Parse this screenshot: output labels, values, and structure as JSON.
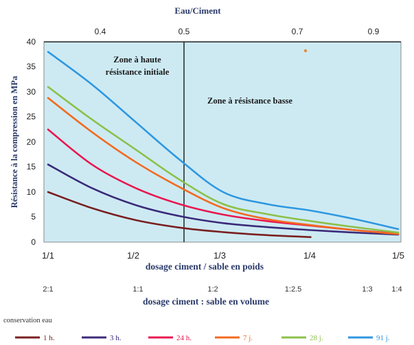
{
  "chart_data": {
    "type": "line",
    "top_axis": {
      "title": "Eau/Ciment",
      "ticks": [
        "0.4",
        "0.5",
        "0.7",
        "0.9"
      ]
    },
    "y_axis": {
      "title": "Résistance à la compression en MPa",
      "range": [
        0,
        40
      ],
      "ticks": [
        "0",
        "5",
        "10",
        "15",
        "20",
        "25",
        "30",
        "35",
        "40"
      ]
    },
    "x_axis": {
      "title": "dosage ciment / sable en poids",
      "ticks": [
        "1/1",
        "1/2",
        "1/3",
        "1/4",
        "1/5"
      ]
    },
    "x_axis_2": {
      "title": "dosage ciment : sable en volume",
      "ticks": [
        "2:1",
        "1:1",
        "1:2",
        "1:2.5",
        "1:3",
        "1:4"
      ]
    },
    "zones": {
      "left": [
        "Zone à haute",
        "résistance initiale"
      ],
      "right": "Zone à résistance basse"
    },
    "footnote": "conservation eau",
    "series": [
      {
        "name": "1 h.",
        "color": "#7a1f1f",
        "x": [
          1,
          1.5,
          2,
          2.5,
          3,
          3.5,
          4
        ],
        "y": [
          10,
          6.8,
          4.4,
          2.9,
          2.0,
          1.4,
          1.0
        ]
      },
      {
        "name": "3 h.",
        "color": "#3a2a78",
        "x": [
          1,
          1.5,
          2,
          2.5,
          3,
          3.5,
          4,
          4.5,
          5
        ],
        "y": [
          15.5,
          10.8,
          7.4,
          5.2,
          3.8,
          3.0,
          2.4,
          1.9,
          1.5
        ]
      },
      {
        "name": "24 h.",
        "color": "#e8194f",
        "x": [
          1,
          1.5,
          2,
          2.5,
          3,
          3.5,
          4,
          4.5,
          5
        ],
        "y": [
          22.5,
          15.5,
          10.8,
          7.6,
          5.5,
          4.2,
          3.3,
          2.4,
          1.7
        ]
      },
      {
        "name": "7 j.",
        "color": "#f36a1f",
        "x": [
          1,
          1.5,
          2,
          2.5,
          3,
          3.5,
          4,
          4.5,
          5
        ],
        "y": [
          28.8,
          22.0,
          16.0,
          11.0,
          6.8,
          4.6,
          3.4,
          2.4,
          1.6
        ]
      },
      {
        "name": "28 j.",
        "color": "#8cc04a",
        "x": [
          1,
          1.5,
          2,
          2.5,
          3,
          3.5,
          4,
          4.5,
          5
        ],
        "y": [
          31.0,
          24.5,
          18.5,
          12.5,
          7.6,
          5.6,
          4.2,
          3.0,
          1.9
        ]
      },
      {
        "name": "91 j.",
        "color": "#2e97e0",
        "x": [
          1,
          1.5,
          2,
          2.5,
          3,
          3.5,
          4,
          4.5,
          5
        ],
        "y": [
          38.0,
          31.5,
          24.0,
          16.5,
          10.0,
          7.6,
          6.3,
          4.6,
          2.6
        ]
      }
    ]
  }
}
